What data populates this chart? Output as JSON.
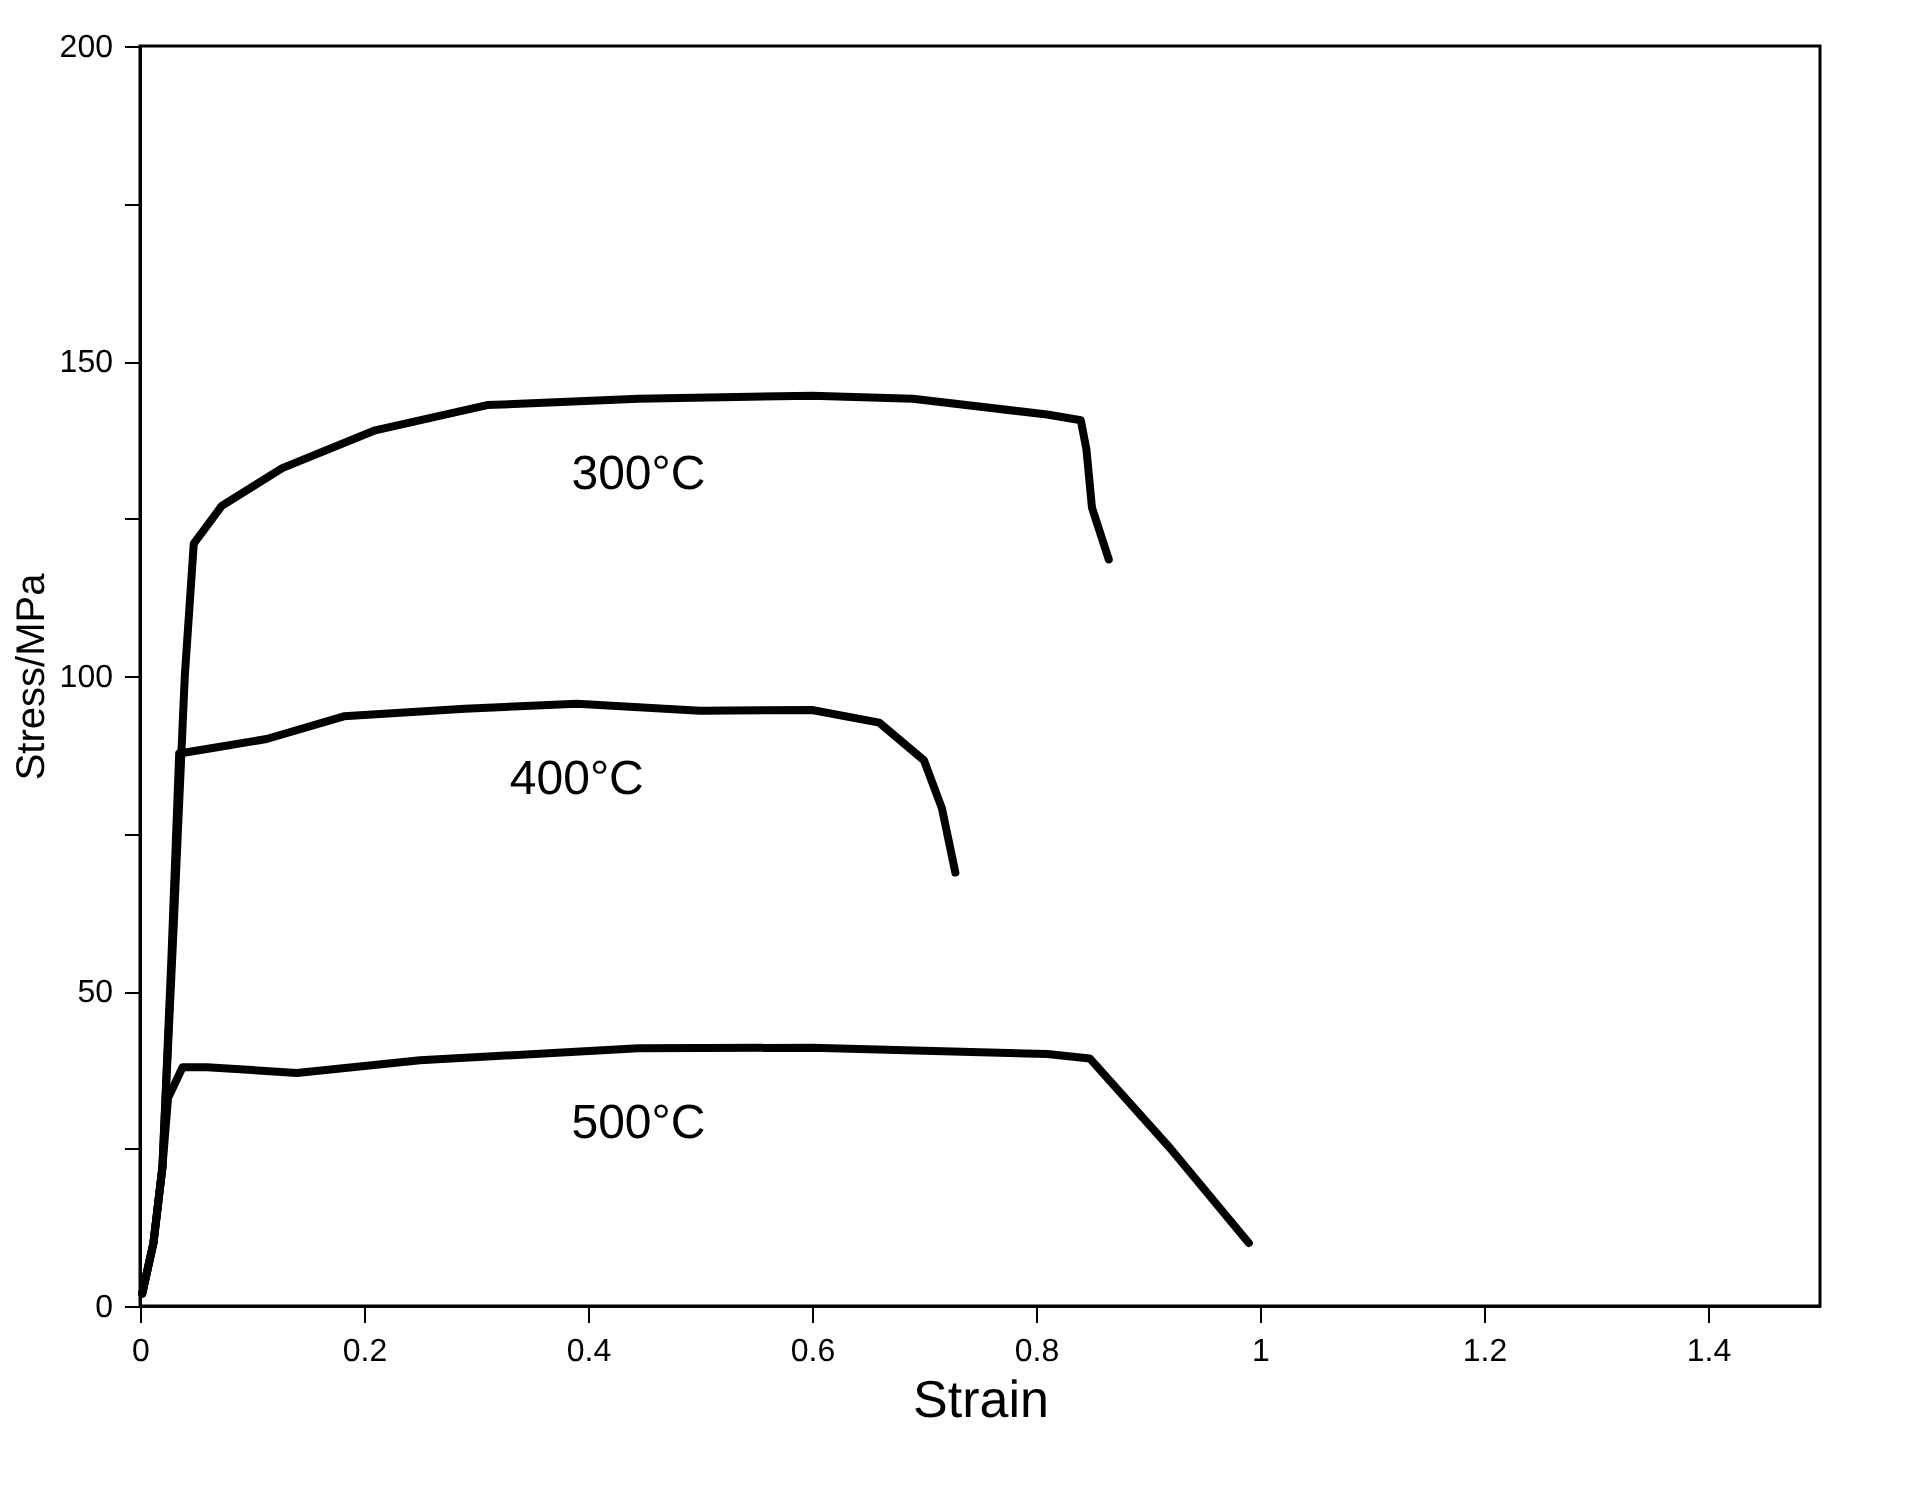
{
  "chart_data": {
    "type": "line",
    "xlabel": "Strain",
    "ylabel": "Stress/MPa",
    "xlim": [
      0,
      1.5
    ],
    "ylim": [
      0,
      200
    ],
    "xticks": [
      0,
      0.2,
      0.4,
      0.6,
      0.8,
      1,
      1.2,
      1.4
    ],
    "yticks": [
      0,
      {
        "value": 25,
        "label": null
      },
      50,
      {
        "value": 75,
        "label": null
      },
      100,
      {
        "value": 125,
        "label": null
      },
      150,
      {
        "value": 175,
        "label": null
      },
      200
    ],
    "grid": false,
    "marker": "none",
    "line_style": "solid",
    "series": [
      {
        "name": "300°C",
        "color": "#000000",
        "x": [
          0.002,
          0.012,
          0.02,
          0.03,
          0.04,
          0.048,
          0.073,
          0.127,
          0.21,
          0.31,
          0.445,
          0.6,
          0.69,
          0.81,
          0.84,
          0.845,
          0.85,
          0.865
        ],
        "values": [
          2,
          10,
          22,
          60,
          100,
          121,
          127,
          133,
          139,
          143,
          144,
          144.5,
          144,
          141.5,
          140.6,
          136,
          126.7,
          118.5
        ]
      },
      {
        "name": "400°C",
        "color": "#000000",
        "x": [
          0.002,
          0.012,
          0.02,
          0.028,
          0.035,
          0.073,
          0.113,
          0.182,
          0.29,
          0.39,
          0.5,
          0.6,
          0.66,
          0.7,
          0.716,
          0.728
        ],
        "values": [
          2,
          10,
          22,
          55,
          87.7,
          88.8,
          90,
          93.6,
          94.8,
          95.6,
          94.5,
          94.6,
          92.6,
          86.6,
          79,
          68.8
        ]
      },
      {
        "name": "500°C",
        "color": "#000000",
        "x": [
          0.002,
          0.012,
          0.02,
          0.025,
          0.038,
          0.06,
          0.14,
          0.25,
          0.445,
          0.6,
          0.81,
          0.848,
          0.92,
          0.99
        ],
        "values": [
          2,
          10,
          22,
          33,
          37.9,
          37.9,
          37,
          39,
          40.9,
          41,
          40,
          39.3,
          25,
          10
        ]
      }
    ]
  }
}
